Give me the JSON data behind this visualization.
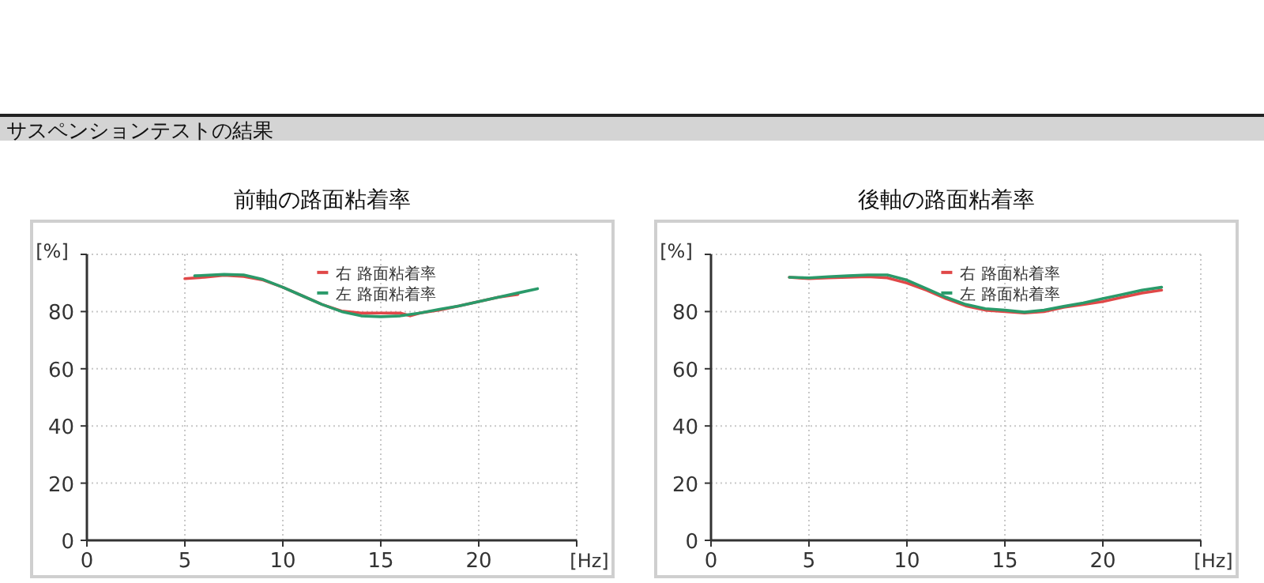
{
  "chart_data": [
    {
      "type": "line",
      "title": "前軸の路面粘着率",
      "annotations": [
        "サスペンションテストの結果"
      ],
      "xlabel": "[Hz]",
      "ylabel": "[%]",
      "xlim": [
        0,
        25
      ],
      "ylim": [
        0,
        100
      ],
      "xticks": [
        0,
        5,
        10,
        15,
        20,
        {
          "value": 25,
          "label": null
        }
      ],
      "yticks": [
        0,
        20,
        40,
        60,
        80,
        {
          "value": 100,
          "label": null
        }
      ],
      "grid": true,
      "legend": "top",
      "marker": "none",
      "line_style": "solid",
      "series": [
        {
          "name": "右 路面粘着率",
          "color": "#e04848",
          "x": [
            5,
            6,
            7,
            8,
            9,
            10,
            11,
            12,
            13,
            14,
            15,
            16,
            16.5,
            17,
            18,
            19,
            20,
            21,
            22
          ],
          "values": [
            91.5,
            92,
            92.7,
            92.3,
            91,
            88.5,
            85.5,
            82.5,
            80.2,
            79.5,
            79.5,
            79.5,
            78.5,
            79.5,
            80.5,
            82,
            83.5,
            85,
            86
          ]
        },
        {
          "name": "左 路面粘着率",
          "color": "#2a9a6a",
          "x": [
            5.5,
            7,
            8,
            9,
            10,
            11,
            12,
            13,
            14,
            15,
            16,
            16.5,
            17,
            18,
            19,
            20,
            21,
            22,
            23
          ],
          "values": [
            92.5,
            93,
            92.8,
            91.2,
            88.5,
            85.5,
            82.5,
            80,
            78.5,
            78.2,
            78.5,
            79,
            79.5,
            80.8,
            82,
            83.5,
            85,
            86.5,
            88
          ]
        }
      ]
    },
    {
      "type": "line",
      "title": "後軸の路面粘着率",
      "xlabel": "[Hz]",
      "ylabel": "[%]",
      "xlim": [
        0,
        25
      ],
      "ylim": [
        0,
        100
      ],
      "xticks": [
        0,
        5,
        10,
        15,
        20,
        {
          "value": 25,
          "label": null
        }
      ],
      "yticks": [
        0,
        20,
        40,
        60,
        80,
        {
          "value": 100,
          "label": null
        }
      ],
      "grid": true,
      "legend": "top",
      "marker": "none",
      "line_style": "solid",
      "series": [
        {
          "name": "右 路面粘着率",
          "color": "#e04848",
          "x": [
            4,
            5,
            6,
            7,
            8,
            9,
            10,
            11,
            12,
            13,
            14,
            15,
            16,
            17,
            18,
            19,
            20,
            21,
            22,
            23
          ],
          "values": [
            92,
            91.5,
            91.8,
            92,
            92.2,
            91.8,
            90,
            87.5,
            84.5,
            82,
            80.5,
            80,
            79.5,
            80,
            81.5,
            82.5,
            83.5,
            85,
            86.5,
            87.5
          ]
        },
        {
          "name": "左 路面粘着率",
          "color": "#2a9a6a",
          "x": [
            4,
            5,
            6,
            7,
            8,
            9,
            10,
            11,
            12,
            13,
            14,
            15,
            16,
            17,
            18,
            19,
            20,
            21,
            22,
            23
          ],
          "values": [
            92,
            91.8,
            92.2,
            92.5,
            92.8,
            92.8,
            91,
            88,
            85,
            82.5,
            81,
            80.5,
            79.8,
            80.5,
            81.8,
            83,
            84.5,
            86,
            87.5,
            88.5
          ]
        }
      ]
    }
  ]
}
